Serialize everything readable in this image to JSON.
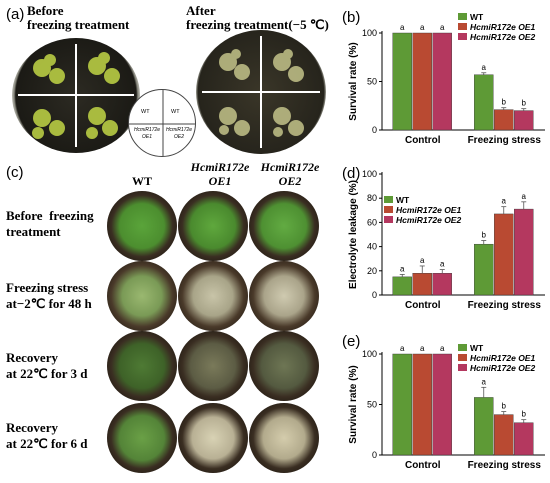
{
  "panel_a": {
    "letter": "(a)",
    "before_label": "Before\nfreezing treatment",
    "after_label": "After\nfreezing treatment(−5 ℃)",
    "legend_cells": [
      "WT",
      "WT",
      "HcmiR172e\nOE1",
      "HcmiR172e\nOE2"
    ]
  },
  "panel_c": {
    "letter": "(c)",
    "columns": [
      "WT",
      "HcmiR172e\nOE1",
      "HcmiR172e\nOE2"
    ],
    "rows": [
      "Before  freezing\ntreatment",
      "Freezing stress\nat−2℃ for 48 h",
      "Recovery\nat 22℃ for 3 d",
      "Recovery\nat 22℃ for 6 d"
    ]
  },
  "colors": {
    "wt": "#5e9a36",
    "oe1": "#b94a32",
    "oe2": "#b4385f"
  },
  "chart_data": [
    {
      "panel": "(b)",
      "type": "bar",
      "ylabel": "Survival rate (%)",
      "ylim": [
        0,
        100
      ],
      "yticks": [
        0,
        50,
        100
      ],
      "categories": [
        "Control",
        "Freezing stress"
      ],
      "legend": [
        "WT",
        "HcmiR172e OE1",
        "HcmiR172e OE2"
      ],
      "legend_position": "top-right",
      "series": [
        {
          "name": "WT",
          "values": [
            100,
            57
          ],
          "errors": [
            0,
            2
          ],
          "letters": [
            "a",
            "a"
          ]
        },
        {
          "name": "HcmiR172e OE1",
          "values": [
            100,
            21
          ],
          "errors": [
            0,
            2
          ],
          "letters": [
            "a",
            "b"
          ]
        },
        {
          "name": "HcmiR172e OE2",
          "values": [
            100,
            20
          ],
          "errors": [
            0,
            2
          ],
          "letters": [
            "a",
            "b"
          ]
        }
      ]
    },
    {
      "panel": "(d)",
      "type": "bar",
      "ylabel": "Electrolyte leakage (%)",
      "ylim": [
        0,
        100
      ],
      "yticks": [
        0,
        20,
        40,
        60,
        80,
        100
      ],
      "categories": [
        "Control",
        "Freezing stress"
      ],
      "legend": [
        "WT",
        "HcmiR172e OE1",
        "HcmiR172e OE2"
      ],
      "legend_position": "top-left",
      "series": [
        {
          "name": "WT",
          "values": [
            15,
            42
          ],
          "errors": [
            2,
            3
          ],
          "letters": [
            "a",
            "b"
          ]
        },
        {
          "name": "HcmiR172e OE1",
          "values": [
            18,
            67
          ],
          "errors": [
            6,
            6
          ],
          "letters": [
            "a",
            "a"
          ]
        },
        {
          "name": "HcmiR172e OE2",
          "values": [
            18,
            71
          ],
          "errors": [
            3,
            6
          ],
          "letters": [
            "a",
            "a"
          ]
        }
      ]
    },
    {
      "panel": "(e)",
      "type": "bar",
      "ylabel": "Survival rate (%)",
      "ylim": [
        0,
        100
      ],
      "yticks": [
        0,
        50,
        100
      ],
      "categories": [
        "Control",
        "Freezing stress"
      ],
      "legend": [
        "WT",
        "HcmiR172e OE1",
        "HcmiR172e OE2"
      ],
      "legend_position": "top-right",
      "series": [
        {
          "name": "WT",
          "values": [
            100,
            57
          ],
          "errors": [
            0,
            10
          ],
          "letters": [
            "a",
            "a"
          ]
        },
        {
          "name": "HcmiR172e OE1",
          "values": [
            100,
            40
          ],
          "errors": [
            0,
            3
          ],
          "letters": [
            "a",
            "b"
          ]
        },
        {
          "name": "HcmiR172e OE2",
          "values": [
            100,
            32
          ],
          "errors": [
            0,
            3
          ],
          "letters": [
            "a",
            "b"
          ]
        }
      ]
    }
  ]
}
